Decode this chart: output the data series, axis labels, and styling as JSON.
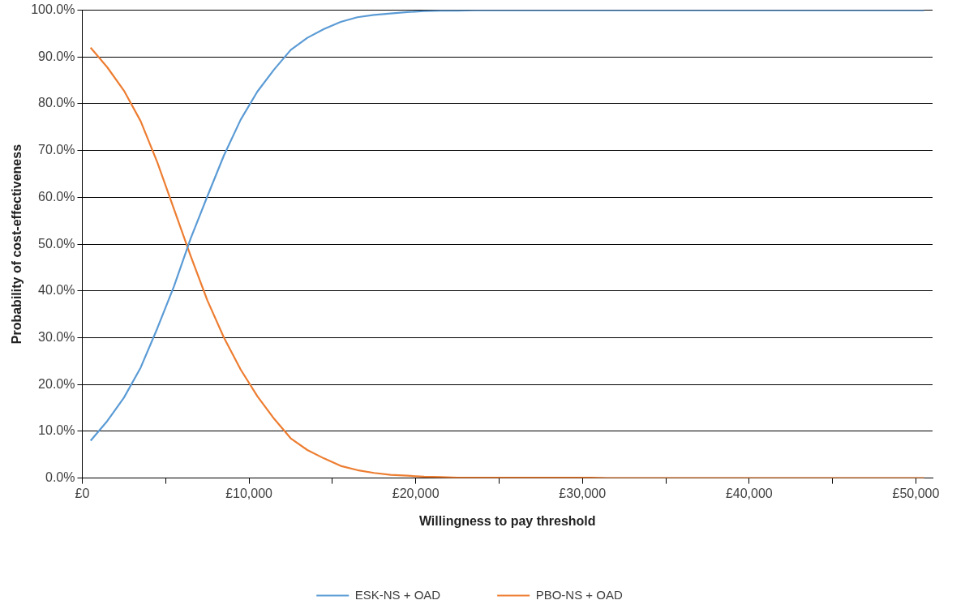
{
  "chart_data": {
    "type": "line",
    "xlabel": "Willingness to pay threshold",
    "ylabel": "Probability of cost-effectiveness",
    "x": [
      500,
      1500,
      2500,
      3500,
      4500,
      5500,
      6500,
      7500,
      8500,
      9500,
      10500,
      11500,
      12500,
      13500,
      14500,
      15500,
      16500,
      17500,
      18500,
      19500,
      20500,
      21500,
      22500,
      23500,
      24500,
      25500,
      26500,
      27500,
      28500,
      29500,
      30500,
      31500,
      32500,
      33500,
      34500,
      35500,
      36500,
      37500,
      38500,
      39500,
      40500,
      41500,
      42500,
      43500,
      44500,
      45500,
      46500,
      47500,
      48500,
      49500,
      50500
    ],
    "series": [
      {
        "name": "ESK-NS + OAD",
        "color": "#5b9bd5",
        "values": [
          8,
          12.2,
          17.2,
          23.6,
          32,
          41,
          51.2,
          60.2,
          69,
          76.6,
          82.6,
          87.3,
          91.5,
          94.1,
          96,
          97.5,
          98.5,
          99,
          99.3,
          99.6,
          99.8,
          99.9,
          99.9,
          100,
          100,
          100,
          100,
          100,
          100,
          100,
          100,
          100,
          100,
          100,
          100,
          100,
          100,
          100,
          100,
          100,
          100,
          100,
          100,
          100,
          100,
          100,
          100,
          100,
          100,
          100,
          100
        ]
      },
      {
        "name": "PBO-NS + OAD",
        "color": "#ed7d31",
        "values": [
          92,
          87.8,
          82.8,
          76.3,
          67.5,
          57.5,
          47.5,
          38,
          30,
          23.2,
          17.5,
          12.7,
          8.5,
          6,
          4.2,
          2.6,
          1.7,
          1.1,
          0.7,
          0.5,
          0.3,
          0.2,
          0.1,
          0.1,
          0.1,
          0.1,
          0.1,
          0.1,
          0.1,
          0.1,
          0.1,
          0,
          0,
          0,
          0,
          0,
          0,
          0,
          0,
          0,
          0,
          0,
          0,
          0,
          0,
          0,
          0,
          0,
          0,
          0,
          0
        ]
      }
    ],
    "xlim": [
      0,
      51000
    ],
    "xticks": [
      {
        "value": 0,
        "label": "£0"
      },
      {
        "value": 5000,
        "label": null
      },
      {
        "value": 10000,
        "label": "£10,000"
      },
      {
        "value": 15000,
        "label": null
      },
      {
        "value": 20000,
        "label": "£20,000"
      },
      {
        "value": 25000,
        "label": null
      },
      {
        "value": 30000,
        "label": "£30,000"
      },
      {
        "value": 35000,
        "label": null
      },
      {
        "value": 40000,
        "label": "£40,000"
      },
      {
        "value": 45000,
        "label": null
      },
      {
        "value": 50000,
        "label": "£50,000"
      }
    ],
    "ylim": [
      0,
      100
    ],
    "yticks": [
      {
        "value": 0,
        "label": "0.0%"
      },
      {
        "value": 10,
        "label": "10.0%"
      },
      {
        "value": 20,
        "label": "20.0%"
      },
      {
        "value": 30,
        "label": "30.0%"
      },
      {
        "value": 40,
        "label": "40.0%"
      },
      {
        "value": 50,
        "label": "50.0%"
      },
      {
        "value": 60,
        "label": "60.0%"
      },
      {
        "value": 70,
        "label": "70.0%"
      },
      {
        "value": 80,
        "label": "80.0%"
      },
      {
        "value": 90,
        "label": "90.0%"
      },
      {
        "value": 100,
        "label": "100.0%"
      }
    ],
    "grid": "y",
    "legend": "bottom",
    "marker": "none",
    "line_style": "solid"
  }
}
